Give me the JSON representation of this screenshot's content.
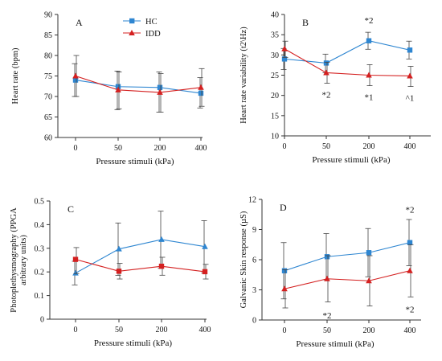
{
  "colors": {
    "hc": "#2E86D1",
    "idd": "#D42020",
    "axis": "#333333",
    "err": "#444444"
  },
  "legend": {
    "hc": "HC",
    "idd": "IDD"
  },
  "chart_data": [
    {
      "type": "line",
      "panel": "A",
      "categories": [
        "0",
        "50",
        "200",
        "400"
      ],
      "xlabel": "Pressure stimuli (kPa)",
      "ylabel": "Heart rate (bpm)",
      "ylim": [
        60,
        90
      ],
      "yticks": [
        "60",
        "65",
        "70",
        "75",
        "80",
        "85",
        "90"
      ],
      "series": [
        {
          "name": "HC",
          "marker": "square",
          "values": [
            74,
            72.4,
            72.2,
            70.8
          ],
          "err_low": [
            70,
            66.8,
            66.2,
            67.2
          ],
          "err_high": [
            78,
            76.2,
            76.0,
            74.6
          ]
        },
        {
          "name": "IDD",
          "marker": "triangle",
          "values": [
            75,
            71.6,
            71.0,
            72.2
          ],
          "err_low": [
            70,
            67.0,
            66.2,
            67.6
          ],
          "err_high": [
            80,
            76.0,
            75.6,
            76.8
          ]
        }
      ],
      "annotations": []
    },
    {
      "type": "line",
      "panel": "B",
      "categories": [
        "0",
        "50",
        "200",
        "400"
      ],
      "xlabel": "Pressure stimuli (kPa)",
      "ylabel": "Heart rate variability (t2\\Hz)",
      "ylim": [
        10,
        40
      ],
      "yticks": [
        "10",
        "15",
        "20",
        "25",
        "30",
        "35",
        "40"
      ],
      "series": [
        {
          "name": "HC",
          "marker": "square",
          "values": [
            29,
            28,
            33.5,
            31.2
          ],
          "err_low": [
            26.4,
            25.6,
            31.4,
            29.0
          ],
          "err_high": [
            31.6,
            30.2,
            35.6,
            33.4
          ]
        },
        {
          "name": "IDD",
          "marker": "triangle",
          "values": [
            31.5,
            25.6,
            25,
            24.8
          ],
          "err_low": [
            29.4,
            23.0,
            22.4,
            22.2
          ],
          "err_high": [
            33.4,
            28.2,
            27.6,
            27.2
          ]
        }
      ],
      "annotations": [
        {
          "text": "*2",
          "x": "200",
          "y": 37.8,
          "pos": "above"
        },
        {
          "text": "*2",
          "x": "50",
          "y": 21.2,
          "pos": "below"
        },
        {
          "text": "*1",
          "x": "200",
          "y": 20.6,
          "pos": "below"
        },
        {
          "text": "^1",
          "x": "400",
          "y": 20.4,
          "pos": "below"
        }
      ]
    },
    {
      "type": "line",
      "panel": "C",
      "categories": [
        "0",
        "50",
        "200",
        "400"
      ],
      "xlabel": "Pressure stimuli (kPa)",
      "ylabel": "Photoplethysmography (PPGA arbitrary units)",
      "ylim": [
        0,
        0.5
      ],
      "yticks": [
        "0",
        "0.1",
        "0.2",
        "0.3",
        "0.4",
        "0.5"
      ],
      "series": [
        {
          "name": "HC",
          "marker": "triangle",
          "values": [
            0.195,
            0.297,
            0.337,
            0.307
          ],
          "err_low": [
            0.145,
            0.185,
            0.215,
            0.195
          ],
          "err_high": [
            0.245,
            0.407,
            0.457,
            0.417
          ]
        },
        {
          "name": "IDD",
          "marker": "square",
          "values": [
            0.253,
            0.203,
            0.224,
            0.201
          ],
          "err_low": [
            0.193,
            0.17,
            0.186,
            0.17
          ],
          "err_high": [
            0.303,
            0.236,
            0.262,
            0.232
          ]
        }
      ],
      "annotations": []
    },
    {
      "type": "line",
      "panel": "D",
      "categories": [
        "0",
        "50",
        "200",
        "400"
      ],
      "xlabel": "Pressure stimuli (kPa)",
      "ylabel": "Galvanic Skin response (µS)",
      "ylim": [
        0,
        12
      ],
      "yticks": [
        "0",
        "3",
        "6",
        "9",
        "12"
      ],
      "series": [
        {
          "name": "HC",
          "marker": "square",
          "values": [
            4.9,
            6.3,
            6.7,
            7.7
          ],
          "err_low": [
            2.1,
            4.0,
            4.3,
            5.4
          ],
          "err_high": [
            7.7,
            8.6,
            9.1,
            10.0
          ]
        },
        {
          "name": "IDD",
          "marker": "triangle",
          "values": [
            3.1,
            4.1,
            3.9,
            4.9
          ],
          "err_low": [
            1.2,
            1.8,
            1.4,
            2.3
          ],
          "err_high": [
            5.0,
            6.4,
            6.4,
            7.5
          ]
        }
      ],
      "annotations": [
        {
          "text": "*2",
          "x": "400",
          "y": 10.7,
          "pos": "above"
        },
        {
          "text": "*2",
          "x": "50",
          "y": 0.9,
          "pos": "below"
        },
        {
          "text": "*2",
          "x": "400",
          "y": 1.5,
          "pos": "below"
        }
      ]
    }
  ]
}
